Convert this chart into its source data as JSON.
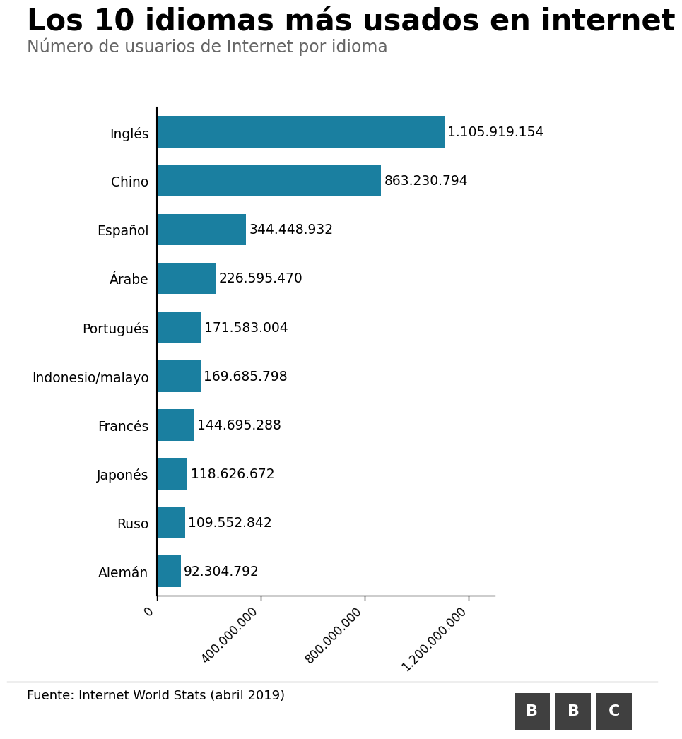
{
  "title": "Los 10 idiomas más usados en internet",
  "subtitle": "Número de usuarios de Internet por idioma",
  "footer": "Fuente: Internet World Stats (abril 2019)",
  "bar_color": "#1a7fa0",
  "categories": [
    "Alemán",
    "Ruso",
    "Japonés",
    "Francés",
    "Indonesio/malayo",
    "Portugués",
    "Árabe",
    "Español",
    "Chino",
    "Inglés"
  ],
  "values": [
    92304792,
    109552842,
    118626672,
    144695288,
    169685798,
    171583004,
    226595470,
    344448932,
    863230794,
    1105919154
  ],
  "labels": [
    "92.304.792",
    "109.552.842",
    "118.626.672",
    "144.695.288",
    "169.685.798",
    "171.583.004",
    "226.595.470",
    "344.448.932",
    "863.230.794",
    "1.105.919.154"
  ],
  "xlim": [
    0,
    1300000000
  ],
  "xticks": [
    0,
    400000000,
    800000000,
    1200000000
  ],
  "xtick_labels": [
    "0",
    "400.000.000",
    "800.000.000",
    "1.200.000.000"
  ],
  "background_color": "#ffffff",
  "title_fontsize": 30,
  "subtitle_fontsize": 17,
  "label_fontsize": 13.5,
  "tick_fontsize": 12,
  "footer_fontsize": 13
}
